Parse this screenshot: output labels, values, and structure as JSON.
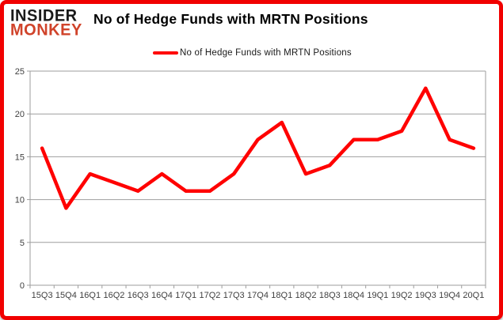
{
  "logo": {
    "line1": "INSIDER",
    "line2": "MONKEY"
  },
  "header": {
    "title": "No of Hedge Funds with MRTN Positions"
  },
  "legend": {
    "label": "No of Hedge Funds with MRTN Positions"
  },
  "colors": {
    "line": "#FF0000",
    "frame_border": "#F10000",
    "logo_accent": "#D0432A",
    "grid": "#9E9E9E",
    "tick_text": "#3F3F3F"
  },
  "chart_data": {
    "type": "line",
    "title": "No of Hedge Funds with MRTN Positions",
    "series_name": "No of Hedge Funds with MRTN Positions",
    "categories": [
      "15Q3",
      "15Q4",
      "16Q1",
      "16Q2",
      "16Q3",
      "16Q4",
      "17Q1",
      "17Q2",
      "17Q3",
      "17Q4",
      "18Q1",
      "18Q2",
      "18Q3",
      "18Q4",
      "19Q1",
      "19Q2",
      "19Q3",
      "19Q4",
      "20Q1"
    ],
    "values": [
      16,
      9,
      13,
      12,
      11,
      13,
      11,
      11,
      13,
      17,
      19,
      13,
      14,
      17,
      17,
      18,
      23,
      17,
      16
    ],
    "xlabel": "",
    "ylabel": "",
    "ylim": [
      0,
      25
    ],
    "yticks": [
      0,
      5,
      10,
      15,
      20,
      25
    ],
    "grid": true,
    "legend_position": "top-center"
  }
}
